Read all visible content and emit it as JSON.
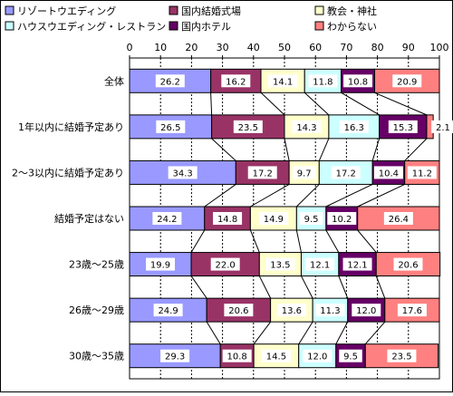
{
  "chart_data": {
    "type": "bar",
    "orientation": "horizontal",
    "stacked": true,
    "percent": true,
    "xlim": [
      0,
      100
    ],
    "x_ticks": [
      "0",
      "10",
      "20",
      "30",
      "40",
      "50",
      "60",
      "70",
      "80",
      "90",
      "100"
    ],
    "grid": true,
    "legend_position": "top",
    "categories": [
      "全体",
      "1年以内に結婚予定あり",
      "2～3以内に結婚予定あり",
      "結婚予定はない",
      "23歳～25歳",
      "26歳～29歳",
      "30歳～35歳"
    ],
    "series": [
      {
        "name": "リゾートウエディング",
        "color": "#9999ff",
        "values": [
          26.2,
          26.5,
          34.3,
          24.2,
          19.9,
          24.9,
          29.3
        ]
      },
      {
        "name": "国内結婚式場",
        "color": "#993366",
        "values": [
          16.2,
          23.5,
          17.2,
          14.8,
          22.0,
          20.6,
          10.8
        ]
      },
      {
        "name": "教会・神社",
        "color": "#ffffcc",
        "values": [
          14.1,
          14.3,
          9.7,
          14.9,
          13.5,
          13.6,
          14.5
        ]
      },
      {
        "name": "ハウスウエディング・レストラン",
        "color": "#ccffff",
        "values": [
          11.8,
          16.3,
          17.2,
          9.5,
          12.1,
          11.3,
          12.0
        ]
      },
      {
        "name": "国内ホテル",
        "color": "#660066",
        "values": [
          10.8,
          15.3,
          10.4,
          10.2,
          12.1,
          12.0,
          9.5
        ]
      },
      {
        "name": "わからない",
        "color": "#ff8080",
        "values": [
          20.9,
          2.1,
          11.2,
          26.4,
          20.6,
          17.6,
          23.5
        ]
      }
    ],
    "data_labels": [
      [
        "26.2",
        "16.2",
        "14.1",
        "11.8",
        "10.8",
        "20.9"
      ],
      [
        "26.5",
        "23.5",
        "14.3",
        "16.3",
        "15.3",
        "2.1"
      ],
      [
        "34.3",
        "17.2",
        "9.7",
        "17.2",
        "10.4",
        "11.2"
      ],
      [
        "24.2",
        "14.8",
        "14.9",
        "9.5",
        "10.2",
        "26.4"
      ],
      [
        "19.9",
        "22.0",
        "13.5",
        "12.1",
        "12.1",
        "20.6"
      ],
      [
        "24.9",
        "20.6",
        "13.6",
        "11.3",
        "12.0",
        "17.6"
      ],
      [
        "29.3",
        "10.8",
        "14.5",
        "12.0",
        "9.5",
        "23.5"
      ]
    ]
  }
}
